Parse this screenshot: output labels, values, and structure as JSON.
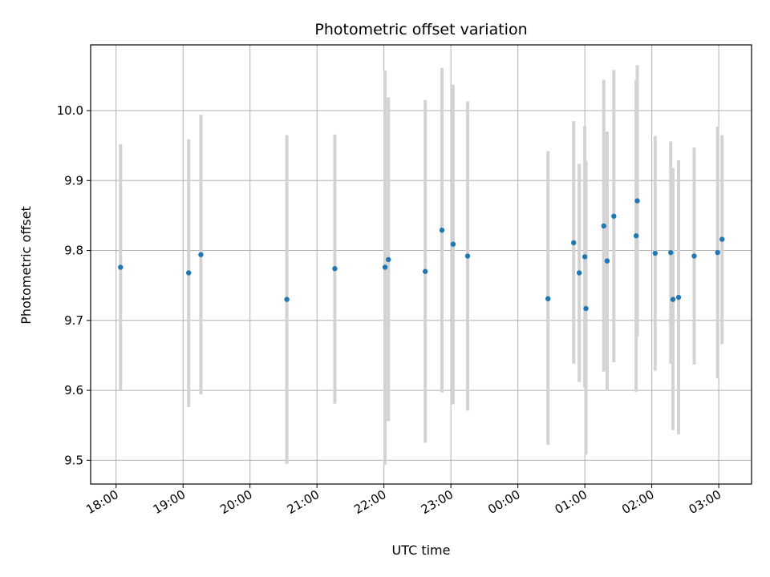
{
  "chart_data": {
    "type": "scatter",
    "title": "Photometric offset variation",
    "xlabel": "UTC time",
    "ylabel": "Photometric offset",
    "x_ticks": [
      "18:00",
      "19:00",
      "20:00",
      "21:00",
      "22:00",
      "23:00",
      "00:00",
      "01:00",
      "02:00",
      "03:00"
    ],
    "y_ticks": [
      "9.5",
      "9.6",
      "9.7",
      "9.8",
      "9.9",
      "10.0"
    ],
    "ylim": [
      9.466,
      10.094
    ],
    "xlim_hours": [
      17.62,
      27.49
    ],
    "grid": true,
    "colors": {
      "point": "#1f77b4",
      "errorbar": "#d3d3d3",
      "grid": "#b0b0b0"
    },
    "points": [
      {
        "time": "18:04",
        "value": 9.776,
        "err_low": 9.601,
        "err_high": 9.952
      },
      {
        "time": "19:05",
        "value": 9.768,
        "err_low": 9.576,
        "err_high": 9.959
      },
      {
        "time": "19:16",
        "value": 9.794,
        "err_low": 9.594,
        "err_high": 9.994
      },
      {
        "time": "20:33",
        "value": 9.73,
        "err_low": 9.495,
        "err_high": 9.965
      },
      {
        "time": "21:16",
        "value": 9.774,
        "err_low": 9.581,
        "err_high": 9.966
      },
      {
        "time": "22:01",
        "value": 9.776,
        "err_low": 9.494,
        "err_high": 10.057
      },
      {
        "time": "22:04",
        "value": 9.787,
        "err_low": 9.556,
        "err_high": 10.019
      },
      {
        "time": "22:37",
        "value": 9.77,
        "err_low": 9.525,
        "err_high": 10.015
      },
      {
        "time": "22:52",
        "value": 9.829,
        "err_low": 9.597,
        "err_high": 10.061
      },
      {
        "time": "23:02",
        "value": 9.809,
        "err_low": 9.58,
        "err_high": 10.037
      },
      {
        "time": "23:15",
        "value": 9.792,
        "err_low": 9.571,
        "err_high": 10.013
      },
      {
        "time": "00:27",
        "value": 9.731,
        "err_low": 9.522,
        "err_high": 9.942
      },
      {
        "time": "00:50",
        "value": 9.811,
        "err_low": 9.638,
        "err_high": 9.985
      },
      {
        "time": "00:55",
        "value": 9.768,
        "err_low": 9.612,
        "err_high": 9.924
      },
      {
        "time": "01:00",
        "value": 9.791,
        "err_low": 9.604,
        "err_high": 9.978
      },
      {
        "time": "01:01",
        "value": 9.717,
        "err_low": 9.508,
        "err_high": 9.928
      },
      {
        "time": "01:17",
        "value": 9.835,
        "err_low": 9.627,
        "err_high": 10.044
      },
      {
        "time": "01:20",
        "value": 9.785,
        "err_low": 9.6,
        "err_high": 9.97
      },
      {
        "time": "01:26",
        "value": 9.849,
        "err_low": 9.64,
        "err_high": 10.058
      },
      {
        "time": "01:46",
        "value": 9.821,
        "err_low": 9.598,
        "err_high": 10.044
      },
      {
        "time": "01:47",
        "value": 9.871,
        "err_low": 9.677,
        "err_high": 10.065
      },
      {
        "time": "02:03",
        "value": 9.796,
        "err_low": 9.628,
        "err_high": 9.964
      },
      {
        "time": "02:17",
        "value": 9.797,
        "err_low": 9.638,
        "err_high": 9.956
      },
      {
        "time": "02:19",
        "value": 9.73,
        "err_low": 9.543,
        "err_high": 9.918
      },
      {
        "time": "02:24",
        "value": 9.733,
        "err_low": 9.537,
        "err_high": 9.929
      },
      {
        "time": "02:38",
        "value": 9.792,
        "err_low": 9.637,
        "err_high": 9.947
      },
      {
        "time": "02:59",
        "value": 9.797,
        "err_low": 9.617,
        "err_high": 9.977
      },
      {
        "time": "03:03",
        "value": 9.816,
        "err_low": 9.666,
        "err_high": 9.965
      }
    ]
  }
}
